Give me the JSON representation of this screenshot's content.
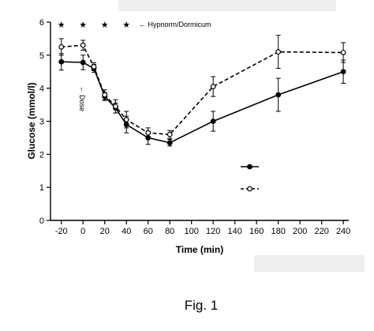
{
  "chart_data": {
    "type": "line",
    "title": "",
    "xlabel": "Time (min)",
    "ylabel": "Glucose (mmol/l)",
    "xlim": [
      -30,
      245
    ],
    "ylim": [
      0,
      6
    ],
    "xticks": [
      -20,
      0,
      20,
      40,
      60,
      80,
      100,
      120,
      140,
      160,
      180,
      200,
      220,
      240
    ],
    "yticks": [
      0,
      1,
      2,
      3,
      4,
      5,
      6
    ],
    "grid": false,
    "series": [
      {
        "marker": "filled-circle",
        "line": "solid",
        "color": "#000000",
        "x": [
          -20,
          0,
          10,
          20,
          30,
          40,
          60,
          80,
          120,
          180,
          240
        ],
        "y": [
          4.8,
          4.78,
          4.6,
          3.75,
          3.4,
          2.9,
          2.5,
          2.35,
          3.0,
          3.8,
          4.5
        ],
        "err": [
          0.25,
          0.22,
          0.12,
          0.12,
          0.15,
          0.25,
          0.2,
          0.1,
          0.3,
          0.5,
          0.35
        ]
      },
      {
        "marker": "open-circle",
        "line": "dashed",
        "color": "#000000",
        "x": [
          -20,
          0,
          10,
          20,
          30,
          40,
          60,
          80,
          120,
          180,
          240
        ],
        "y": [
          5.25,
          5.3,
          4.65,
          3.8,
          3.45,
          3.05,
          2.65,
          2.6,
          4.05,
          5.1,
          5.08
        ],
        "err": [
          0.25,
          0.15,
          0.12,
          0.15,
          0.2,
          0.25,
          0.15,
          0.12,
          0.3,
          0.5,
          0.3
        ]
      }
    ],
    "significance_marks": [
      {
        "x": -20,
        "text": "★"
      },
      {
        "x": 0,
        "text": "★"
      },
      {
        "x": 20,
        "text": "★"
      },
      {
        "x": 40,
        "text": "★"
      }
    ],
    "annotations": {
      "hypnorm": "← Hypnorm/Dormicum",
      "dose_arrow": "↑",
      "dose": "Dose"
    },
    "legend": {
      "placement": "bottom-right",
      "entries": [
        {
          "marker": "filled-circle",
          "line": "solid"
        },
        {
          "marker": "open-circle",
          "line": "dashed"
        }
      ]
    }
  },
  "caption": "Fig. 1"
}
